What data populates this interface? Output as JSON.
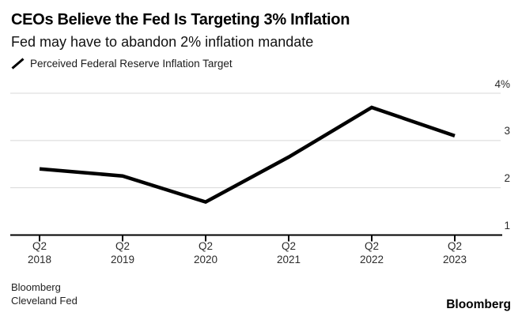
{
  "header": {
    "title": "CEOs Believe the Fed Is Targeting 3% Inflation",
    "subtitle": "Fed may have to abandon 2% inflation mandate"
  },
  "legend": {
    "marker_icon": "diagonal-line-icon",
    "label": "Perceived Federal Reserve Inflation Target"
  },
  "chart_data": {
    "type": "line",
    "title": "CEOs Believe the Fed Is Targeting 3% Inflation",
    "subtitle": "Fed may have to abandon 2% inflation mandate",
    "categories": [
      "Q2 2018",
      "Q2 2019",
      "Q2 2020",
      "Q2 2021",
      "Q2 2022",
      "Q2 2023"
    ],
    "x_tick_labels": [
      [
        "Q2",
        "2018"
      ],
      [
        "Q2",
        "2019"
      ],
      [
        "Q2",
        "2020"
      ],
      [
        "Q2",
        "2021"
      ],
      [
        "Q2",
        "2022"
      ],
      [
        "Q2",
        "2023"
      ]
    ],
    "series": [
      {
        "name": "Perceived Federal Reserve Inflation Target",
        "values": [
          2.4,
          2.25,
          1.7,
          2.65,
          3.7,
          3.1
        ],
        "color": "#000000"
      }
    ],
    "unit": "%",
    "ylim": [
      1,
      4
    ],
    "yticks": [
      {
        "value": 4,
        "label": "4%"
      },
      {
        "value": 3,
        "label": "3"
      },
      {
        "value": 2,
        "label": "2"
      },
      {
        "value": 1,
        "label": "1"
      }
    ],
    "baseline_value": 1,
    "grid": "horizontal",
    "legend_position": "top-left",
    "colors": {
      "line": "#000000",
      "grid": "#d8d8d8",
      "axis": "#000000",
      "background": "#ffffff"
    }
  },
  "footer": {
    "source_line1": "Bloomberg",
    "source_line2": "Cleveland Fed",
    "brand": "Bloomberg"
  }
}
